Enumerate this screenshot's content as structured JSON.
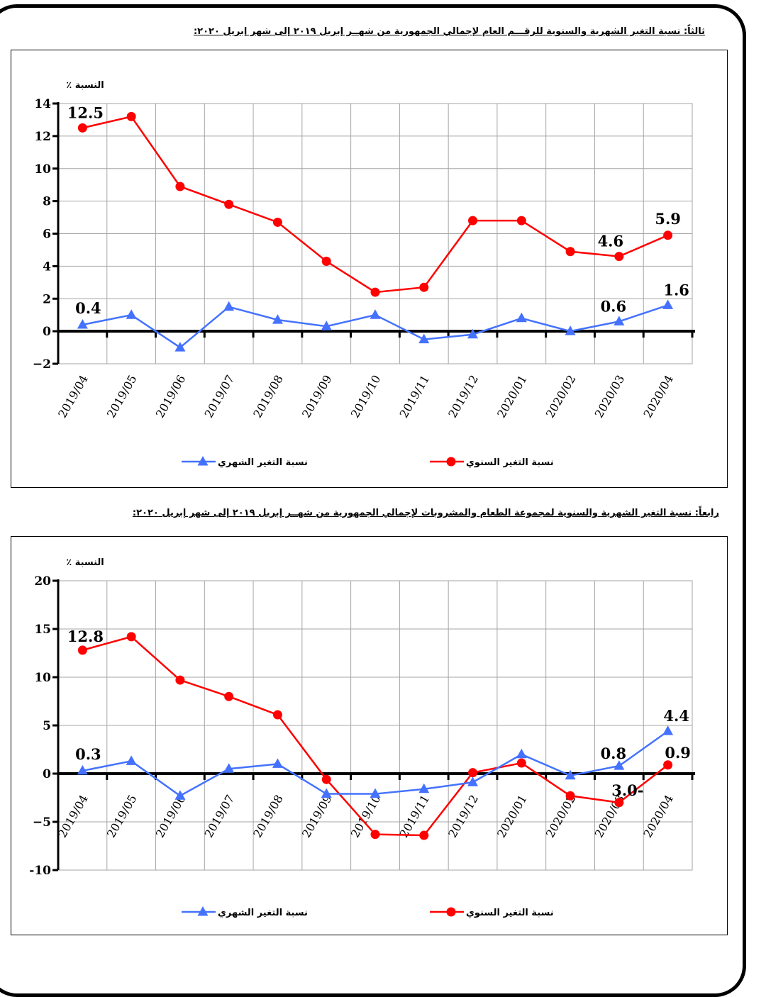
{
  "titles": {
    "section3": "ثالثاً: نسبة التغير الشهرية والسنوية للرقـــم العام لإجمالي الجمهورية من شهــر إبريل ٢٠١٩ إلى شهر إبريل ٢٠٢٠:",
    "section4": "رابعاً: نسبة التغير الشهرية والسنوية لمجموعة الطعام والمشروبات لإجمالي الجمهورية من شهــر إبريل ٢٠١٩ إلى شهر إبريل ٢٠٢٠:"
  },
  "chart_data": [
    {
      "type": "line",
      "ylabel": "النسبة ٪",
      "ylim": [
        -2,
        14
      ],
      "yticks": [
        -2,
        0,
        2,
        4,
        6,
        8,
        10,
        12,
        14
      ],
      "ytick_labels": [
        "−2",
        "0",
        "2",
        "4",
        "6",
        "8",
        "10",
        "12",
        "14"
      ],
      "grid": true,
      "legend_position": "bottom",
      "categories": [
        "2019/04",
        "2019/05",
        "2019/06",
        "2019/07",
        "2019/08",
        "2019/09",
        "2019/10",
        "2019/11",
        "2019/12",
        "2020/01",
        "2020/02",
        "2020/03",
        "2020/04"
      ],
      "series": [
        {
          "name": "نسبة التغير السنوي",
          "color": "#ff0000",
          "marker": "circle",
          "values": [
            12.5,
            13.2,
            8.9,
            7.8,
            6.7,
            4.3,
            2.4,
            2.7,
            6.8,
            6.8,
            4.9,
            4.6,
            5.9
          ],
          "labels": [
            {
              "i": 0,
              "text": "12.5"
            },
            {
              "i": 11,
              "text": "4.6"
            },
            {
              "i": 12,
              "text": "5.9"
            }
          ]
        },
        {
          "name": "نسبة التغير الشهري",
          "color": "#4472ff",
          "marker": "triangle",
          "values": [
            0.4,
            1.0,
            -1.0,
            1.5,
            0.7,
            0.3,
            1.0,
            -0.5,
            -0.2,
            0.8,
            0.0,
            0.6,
            1.6
          ],
          "labels": [
            {
              "i": 0,
              "text": "0.4"
            },
            {
              "i": 11,
              "text": "0.6"
            },
            {
              "i": 12,
              "text": "1.6"
            }
          ]
        }
      ]
    },
    {
      "type": "line",
      "ylabel": "النسبة ٪",
      "ylim": [
        -10,
        20
      ],
      "yticks": [
        -10,
        -5,
        0,
        5,
        10,
        15,
        20
      ],
      "ytick_labels": [
        "-10",
        "−5",
        "0",
        "5",
        "10",
        "15",
        "20"
      ],
      "grid": true,
      "legend_position": "bottom",
      "categories": [
        "2019/04",
        "2019/05",
        "2019/06",
        "2019/07",
        "2019/08",
        "2019/09",
        "2019/10",
        "2019/11",
        "2019/12",
        "2020/01",
        "2020/02",
        "2020/03",
        "2020/04"
      ],
      "series": [
        {
          "name": "نسبة التغير السنوي",
          "color": "#ff0000",
          "marker": "circle",
          "values": [
            12.8,
            14.2,
            9.7,
            8.0,
            6.1,
            -0.6,
            -6.3,
            -6.4,
            0.1,
            1.1,
            -2.3,
            -3.0,
            0.9
          ],
          "labels": [
            {
              "i": 0,
              "text": "12.8"
            },
            {
              "i": 11,
              "text": "3.0-"
            },
            {
              "i": 12,
              "text": "0.9"
            }
          ]
        },
        {
          "name": "نسبة التغير الشهري",
          "color": "#4472ff",
          "marker": "triangle",
          "values": [
            0.3,
            1.3,
            -2.3,
            0.5,
            1.0,
            -2.1,
            -2.1,
            -1.6,
            -0.9,
            2.0,
            -0.2,
            0.8,
            4.4
          ],
          "labels": [
            {
              "i": 0,
              "text": "0.3"
            },
            {
              "i": 11,
              "text": "0.8"
            },
            {
              "i": 12,
              "text": "4.4"
            }
          ]
        }
      ]
    }
  ]
}
